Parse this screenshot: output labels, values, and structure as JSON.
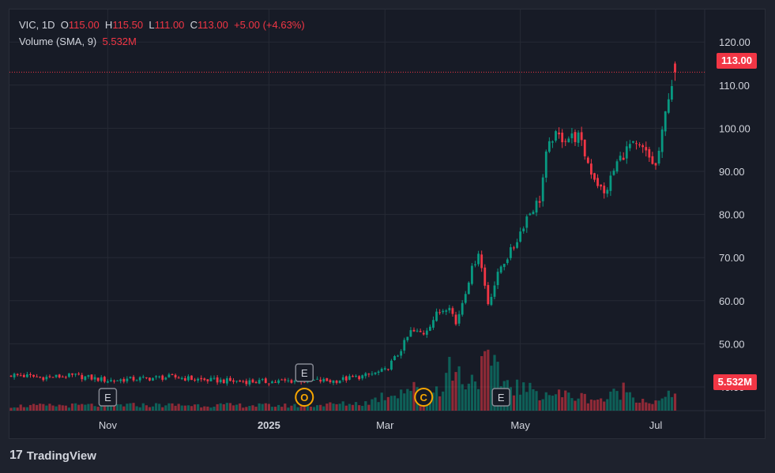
{
  "header": {
    "symbol": "VIC",
    "interval": "1D",
    "open_label": "O",
    "open": "115.00",
    "high_label": "H",
    "high": "115.50",
    "low_label": "L",
    "low": "111.00",
    "close_label": "C",
    "close": "113.00",
    "change": "+5.00 (+4.63%)",
    "volume_label": "Volume (SMA, 9)",
    "volume_value": "5.532M"
  },
  "price_badge": "113.00",
  "volume_badge": "5.532M",
  "footer": {
    "brand": "TradingView",
    "logo": "17"
  },
  "colors": {
    "up": "#089981",
    "down": "#f23645",
    "event": "#f7a600",
    "grid": "#262a35",
    "text": "#d1d4dc"
  },
  "chart_data": {
    "type": "candlestick",
    "ylim": [
      40,
      123
    ],
    "y_ticks": [
      120,
      110,
      100,
      90,
      80,
      70,
      60,
      50,
      40
    ],
    "y_tick_labels": [
      "120.00",
      "110.00",
      "100.00",
      "90.00",
      "80.00",
      "70.00",
      "60.00",
      "50.00",
      "40.00"
    ],
    "x_tick_labels": [
      "Nov",
      "2025",
      "Mar",
      "May",
      "Jul"
    ],
    "x_tick_index": [
      30,
      80,
      116,
      158,
      200
    ],
    "current_price": 113.0,
    "events": [
      {
        "label": "E",
        "index": 30,
        "row": "lower"
      },
      {
        "label": "E",
        "index": 91,
        "row": "upper"
      },
      {
        "label": "O",
        "index": 91,
        "row": "lower",
        "circle": true
      },
      {
        "label": "C",
        "index": 128,
        "row": "lower",
        "circle": true
      },
      {
        "label": "E",
        "index": 152,
        "row": "lower"
      }
    ],
    "anchors": [
      [
        0,
        42.8
      ],
      [
        10,
        42.2
      ],
      [
        20,
        42.6
      ],
      [
        30,
        41.5
      ],
      [
        40,
        41.9
      ],
      [
        50,
        42.3
      ],
      [
        60,
        41.6
      ],
      [
        70,
        41.3
      ],
      [
        80,
        41.2
      ],
      [
        90,
        41.5
      ],
      [
        100,
        41.4
      ],
      [
        110,
        42.6
      ],
      [
        116,
        43.8
      ],
      [
        120,
        47.5
      ],
      [
        124,
        52.8
      ],
      [
        128,
        52.5
      ],
      [
        132,
        56.8
      ],
      [
        136,
        59.2
      ],
      [
        138,
        54.5
      ],
      [
        142,
        65.0
      ],
      [
        145,
        71.5
      ],
      [
        148,
        59.5
      ],
      [
        152,
        68.0
      ],
      [
        156,
        72.5
      ],
      [
        160,
        79.5
      ],
      [
        164,
        83.5
      ],
      [
        166,
        93.5
      ],
      [
        168,
        98.0
      ],
      [
        172,
        97.8
      ],
      [
        176,
        98.0
      ],
      [
        180,
        90.0
      ],
      [
        184,
        84.5
      ],
      [
        188,
        92.0
      ],
      [
        192,
        96.0
      ],
      [
        196,
        95.0
      ],
      [
        200,
        91.0
      ],
      [
        202,
        98.5
      ],
      [
        204,
        108.0
      ],
      [
        206,
        113.0
      ]
    ],
    "volume_max_M": 21.2,
    "volume_anchors": [
      [
        0,
        1.5
      ],
      [
        30,
        1.8
      ],
      [
        60,
        1.8
      ],
      [
        90,
        1.6
      ],
      [
        110,
        2.5
      ],
      [
        116,
        5.0
      ],
      [
        124,
        7.5
      ],
      [
        128,
        5.0
      ],
      [
        134,
        8.5
      ],
      [
        136,
        14.0
      ],
      [
        142,
        9.5
      ],
      [
        148,
        15.0
      ],
      [
        152,
        10.0
      ],
      [
        160,
        6.5
      ],
      [
        168,
        5.5
      ],
      [
        176,
        4.5
      ],
      [
        184,
        3.5
      ],
      [
        190,
        7.0
      ],
      [
        196,
        3.5
      ],
      [
        200,
        2.5
      ],
      [
        206,
        5.532
      ]
    ]
  }
}
